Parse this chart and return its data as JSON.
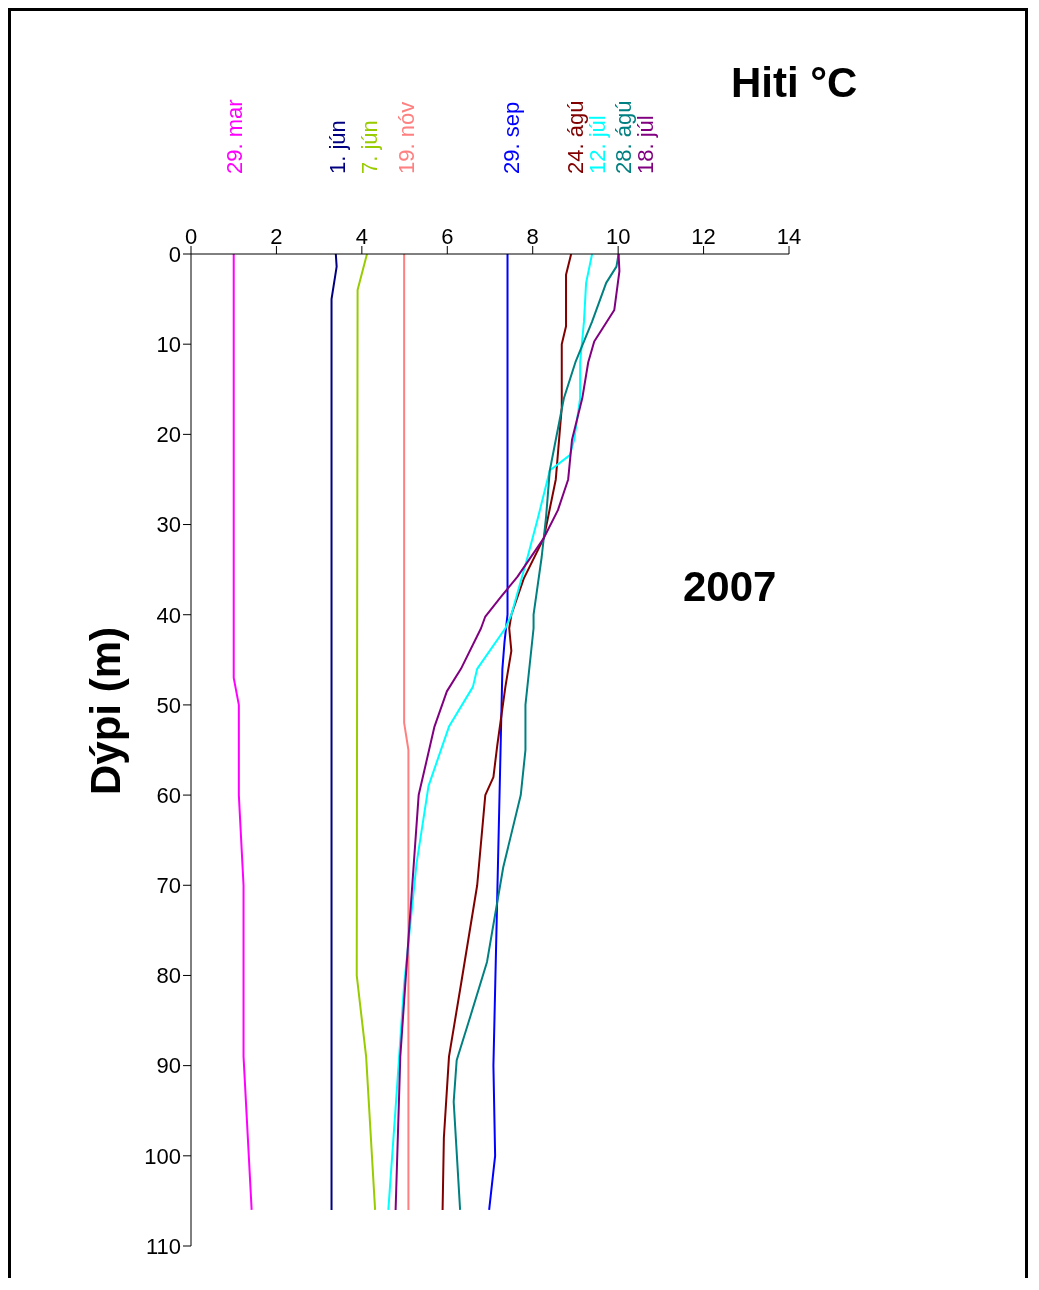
{
  "chart_data": {
    "type": "line",
    "xlabel": "Hiti °C",
    "ylabel": "Dýpi (m)",
    "annotations": [
      "2007"
    ],
    "xlim": [
      0,
      14
    ],
    "xticks": [
      0,
      2,
      4,
      6,
      8,
      10,
      12,
      14
    ],
    "ylim": [
      110,
      0
    ],
    "yticks": [
      0,
      10,
      20,
      30,
      40,
      50,
      60,
      70,
      80,
      90,
      100,
      110
    ],
    "grid": false,
    "legend": false,
    "marker": "none",
    "line_style": "solid",
    "series": [
      {
        "name": "29. mar",
        "color": "#ff00ff",
        "x": [
          1.0,
          1.0,
          1.12,
          1.12,
          1.23,
          1.23,
          1.42
        ],
        "values": [
          0,
          47,
          50,
          60,
          70,
          89,
          106
        ]
      },
      {
        "name": "1. jún",
        "color": "#000080",
        "x": [
          3.39,
          3.41,
          3.29,
          3.29
        ],
        "values": [
          0,
          1.4,
          5,
          106
        ]
      },
      {
        "name": "7. jún",
        "color": "#99cc00",
        "x": [
          4.12,
          3.9,
          3.88,
          4.1,
          4.31
        ],
        "values": [
          0,
          4,
          80,
          89,
          106
        ]
      },
      {
        "name": "19. nóv",
        "color": "#ff8080",
        "x": [
          4.99,
          4.99,
          5.09,
          5.09
        ],
        "values": [
          0,
          52,
          55,
          106
        ]
      },
      {
        "name": "29. sep",
        "color": "#0000ff",
        "x": [
          7.41,
          7.41,
          7.34,
          7.29,
          7.08,
          7.12,
          6.98
        ],
        "values": [
          0,
          40,
          43,
          46,
          90,
          100,
          106
        ]
      },
      {
        "name": "24. ágú",
        "color": "#800000",
        "x": [
          8.9,
          8.78,
          8.78,
          8.68,
          8.68,
          8.54,
          8.26,
          7.79,
          7.5,
          7.45,
          7.5,
          7.36,
          7.17,
          7.08,
          6.89,
          6.7,
          6.32,
          6.04,
          5.92,
          5.89
        ],
        "values": [
          0,
          2.3,
          8,
          10,
          17,
          25,
          31.5,
          36,
          40,
          41.5,
          44,
          48,
          54.5,
          58,
          60,
          70,
          81,
          89,
          98,
          106
        ]
      },
      {
        "name": "12. júl",
        "color": "#00ffff",
        "x": [
          9.39,
          9.25,
          9.2,
          9.11,
          9.11,
          8.97,
          8.87,
          8.4,
          8.12,
          7.88,
          7.5,
          7.36,
          6.7,
          6.6,
          6.04,
          5.56,
          5.28,
          4.99,
          4.8,
          4.62
        ],
        "values": [
          0,
          3.2,
          7.5,
          12,
          16,
          20.6,
          22.3,
          24,
          29.3,
          33.6,
          40,
          41.5,
          46,
          48,
          52.4,
          59,
          67.6,
          81,
          94,
          106
        ]
      },
      {
        "name": "28. ágú",
        "color": "#008080",
        "x": [
          10.01,
          9.96,
          9.72,
          9.39,
          9.2,
          9.0,
          8.73,
          8.54,
          8.4,
          8.31,
          8.21,
          8.02,
          8.02,
          7.83,
          7.83,
          7.72,
          7.31,
          6.93,
          6.51,
          6.22,
          6.15,
          6.3
        ],
        "values": [
          0,
          1.4,
          3.2,
          7.5,
          9.7,
          12,
          16,
          20.6,
          24,
          29.3,
          33.6,
          40,
          41.5,
          50,
          55,
          60,
          68,
          78.5,
          85,
          89.4,
          94,
          106
        ]
      },
      {
        "name": "18. júl",
        "color": "#800080",
        "x": [
          10.01,
          10.03,
          9.91,
          9.44,
          9.3,
          9.16,
          8.92,
          8.83,
          8.59,
          8.26,
          7.64,
          7.26,
          6.89,
          6.79,
          6.32,
          5.99,
          5.7,
          5.33,
          5.09,
          4.9,
          4.79
        ],
        "values": [
          0,
          1.9,
          6.2,
          9.7,
          12,
          16,
          20.6,
          25,
          28.4,
          31.5,
          35.8,
          38,
          40.2,
          41.5,
          46,
          48.5,
          52.4,
          60,
          76,
          89,
          106
        ]
      }
    ]
  }
}
